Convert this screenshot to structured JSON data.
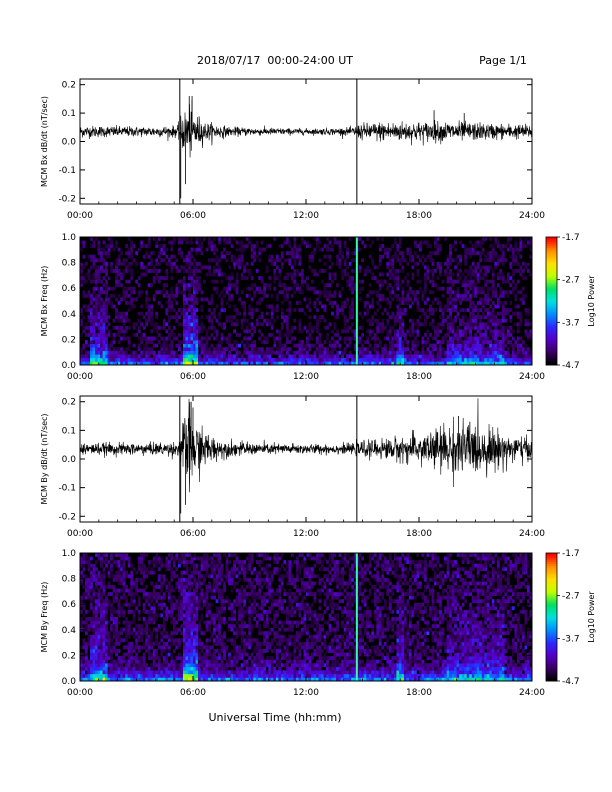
{
  "header": {
    "date_range": "2018/07/17  00:00-24:00 UT",
    "page": "Page 1/1"
  },
  "footer": {
    "xlabel": "Universal Time (hh:mm)"
  },
  "colors": {
    "trace": "#000000",
    "spectrogram_background": "#000000",
    "spike_marker_line": "#000000",
    "spike_marker_spectrogram": "#33ffaa"
  },
  "colormap": [
    "#000000",
    "#3a0066",
    "#5500cc",
    "#2a2aff",
    "#0090ff",
    "#00e0e0",
    "#00e060",
    "#c0ff00",
    "#ffe000",
    "#ff9000",
    "#ff0000"
  ],
  "chart_data": [
    {
      "type": "line",
      "ylabel": "MCM Bx dB/dt (nT/sec)",
      "xlabel": "",
      "xlim": [
        0,
        24
      ],
      "ylim": [
        -0.22,
        0.22
      ],
      "x_ticks": [
        "00:00",
        "06:00",
        "12:00",
        "18:00",
        "24:00"
      ],
      "y_ticks": [
        -0.2,
        -0.1,
        0.0,
        0.1,
        0.2
      ],
      "y_tick_labels": [
        "-0.2",
        "-0.1",
        "0.0",
        "0.1",
        "0.2"
      ],
      "baseline": 0.035,
      "envelope": [
        [
          0,
          0.012
        ],
        [
          3.5,
          0.01
        ],
        [
          5.2,
          0.012
        ],
        [
          5.4,
          0.035
        ],
        [
          5.8,
          0.055
        ],
        [
          6.1,
          0.04
        ],
        [
          6.6,
          0.02
        ],
        [
          8,
          0.009
        ],
        [
          12,
          0.006
        ],
        [
          14.4,
          0.008
        ],
        [
          14.9,
          0.016
        ],
        [
          16,
          0.02
        ],
        [
          18,
          0.02
        ],
        [
          20,
          0.02
        ],
        [
          22,
          0.016
        ],
        [
          24,
          0.014
        ]
      ],
      "spikes": [
        {
          "x": 5.35,
          "y": -0.2
        },
        {
          "x": 5.6,
          "y": -0.15
        },
        {
          "x": 5.8,
          "y": 0.16
        },
        {
          "x": 5.95,
          "y": 0.16
        },
        {
          "x": 18.8,
          "y": 0.11
        },
        {
          "x": 20.4,
          "y": 0.1
        }
      ],
      "markers": [
        5.3,
        14.7
      ]
    },
    {
      "type": "heatmap",
      "ylabel": "MCM Bx Freq (Hz)",
      "colorbar_label": "Log10 Power",
      "colorbar_ticks": [
        "-1.7",
        "-2.7",
        "-3.7",
        "-4.7"
      ],
      "xlim": [
        0,
        24
      ],
      "ylim": [
        0,
        1.0
      ],
      "x_ticks": [
        "00:00",
        "06:00",
        "12:00",
        "18:00",
        "24:00"
      ],
      "y_ticks": [
        0.0,
        0.2,
        0.4,
        0.6,
        0.8,
        1.0
      ],
      "y_tick_labels": [
        "0.0",
        "0.2",
        "0.4",
        "0.6",
        "0.8",
        "1.0"
      ],
      "color_range": [
        -4.7,
        -1.7
      ],
      "background_power": -4.6,
      "lowfreq_band_power": -3.5,
      "activity_intervals": [
        [
          0.5,
          1.4,
          -3.6
        ],
        [
          5.5,
          6.2,
          -3.2
        ],
        [
          16.8,
          17.2,
          -3.8
        ],
        [
          19.5,
          22.5,
          -4.0
        ]
      ],
      "marker": 14.7
    },
    {
      "type": "line",
      "ylabel": "MCM By dB/dt (nT/sec)",
      "xlabel": "",
      "xlim": [
        0,
        24
      ],
      "ylim": [
        -0.22,
        0.22
      ],
      "x_ticks": [
        "00:00",
        "06:00",
        "12:00",
        "18:00",
        "24:00"
      ],
      "y_ticks": [
        -0.2,
        -0.1,
        0.0,
        0.1,
        0.2
      ],
      "y_tick_labels": [
        "-0.2",
        "-0.1",
        "0.0",
        "0.1",
        "0.2"
      ],
      "baseline": 0.035,
      "envelope": [
        [
          0,
          0.012
        ],
        [
          3.5,
          0.012
        ],
        [
          5.2,
          0.014
        ],
        [
          5.4,
          0.05
        ],
        [
          5.8,
          0.09
        ],
        [
          6.1,
          0.06
        ],
        [
          6.6,
          0.035
        ],
        [
          7.5,
          0.018
        ],
        [
          9,
          0.012
        ],
        [
          12,
          0.01
        ],
        [
          14.4,
          0.01
        ],
        [
          14.9,
          0.015
        ],
        [
          16,
          0.02
        ],
        [
          18,
          0.03
        ],
        [
          19.5,
          0.05
        ],
        [
          20.5,
          0.055
        ],
        [
          22,
          0.04
        ],
        [
          24,
          0.02
        ]
      ],
      "spikes": [
        {
          "x": 5.35,
          "y": -0.19
        },
        {
          "x": 5.6,
          "y": -0.16
        },
        {
          "x": 5.9,
          "y": 0.2
        },
        {
          "x": 6.0,
          "y": 0.18
        },
        {
          "x": 20.1,
          "y": 0.15
        },
        {
          "x": 20.7,
          "y": 0.13
        }
      ],
      "markers": [
        5.3,
        14.7
      ]
    },
    {
      "type": "heatmap",
      "ylabel": "MCM By Freq (Hz)",
      "colorbar_label": "Log10 Power",
      "colorbar_ticks": [
        "-1.7",
        "-2.7",
        "-3.7",
        "-4.7"
      ],
      "xlim": [
        0,
        24
      ],
      "ylim": [
        0,
        1.0
      ],
      "x_ticks": [
        "00:00",
        "06:00",
        "12:00",
        "18:00",
        "24:00"
      ],
      "y_ticks": [
        0.0,
        0.2,
        0.4,
        0.6,
        0.8,
        1.0
      ],
      "y_tick_labels": [
        "0.0",
        "0.2",
        "0.4",
        "0.6",
        "0.8",
        "1.0"
      ],
      "color_range": [
        -4.7,
        -1.7
      ],
      "background_power": -4.5,
      "lowfreq_band_power": -3.4,
      "activity_intervals": [
        [
          0.5,
          1.4,
          -3.6
        ],
        [
          5.5,
          6.2,
          -3.1
        ],
        [
          16.8,
          17.2,
          -3.7
        ],
        [
          19.5,
          22.5,
          -3.9
        ]
      ],
      "marker": 14.7
    }
  ]
}
